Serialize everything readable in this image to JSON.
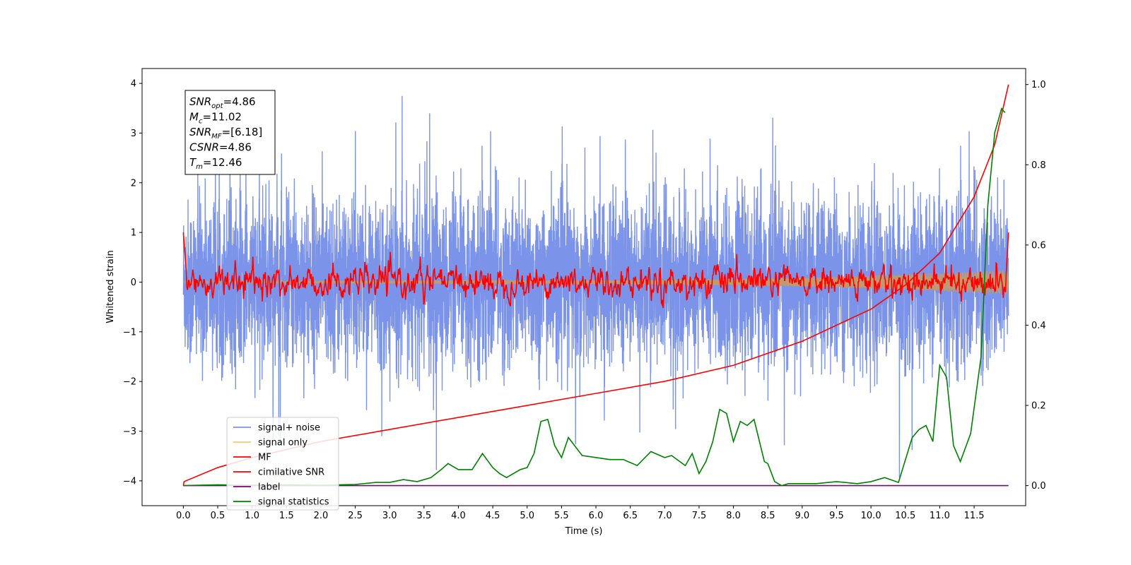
{
  "chart_data": {
    "type": "line",
    "xlabel": "Time (s)",
    "ylabel": "Whitened strain",
    "xlim": [
      -0.6,
      12.25
    ],
    "ylim_left": [
      -4.5,
      4.3
    ],
    "ylim_right": [
      -0.05,
      1.04
    ],
    "x_ticks": [
      0.0,
      0.5,
      1.0,
      1.5,
      2.0,
      2.5,
      3.0,
      3.5,
      4.0,
      4.5,
      5.0,
      5.5,
      6.0,
      6.5,
      7.0,
      7.5,
      8.0,
      8.5,
      9.0,
      9.5,
      10.0,
      10.5,
      11.0,
      11.5
    ],
    "x_tick_labels": [
      "0.0",
      "0.5",
      "1.0",
      "1.5",
      "2.0",
      "2.5",
      "3.0",
      "3.5",
      "4.0",
      "4.5",
      "5.0",
      "5.5",
      "6.0",
      "6.5",
      "7.0",
      "7.5",
      "8.0",
      "8.5",
      "9.0",
      "9.5",
      "10.0",
      "10.5",
      "11.0",
      "11.5"
    ],
    "y_ticks_left": [
      -4,
      -3,
      -2,
      -1,
      0,
      1,
      2,
      3,
      4
    ],
    "y_tick_labels_left": [
      "−4",
      "−3",
      "−2",
      "−1",
      "0",
      "1",
      "2",
      "3",
      "4"
    ],
    "y_ticks_right": [
      0.0,
      0.2,
      0.4,
      0.6,
      0.8,
      1.0
    ],
    "y_tick_labels_right": [
      "0.0",
      "0.2",
      "0.4",
      "0.6",
      "0.8",
      "1.0"
    ],
    "annotation": {
      "lines": [
        {
          "base": "SNR",
          "sub": "opt",
          "rest": "=4.86"
        },
        {
          "base": "M",
          "sub": "c",
          "rest": "=11.02"
        },
        {
          "base": "SNR",
          "sub": "MF",
          "rest": "=[6.18]"
        },
        {
          "base": "CSNR",
          "sub": "",
          "rest": "=4.86"
        },
        {
          "base": "T",
          "sub": "m",
          "rest": "=12.46"
        }
      ]
    },
    "legend_position": "lower-left",
    "series": [
      {
        "name": "signal+ noise",
        "color": "#7b93e8",
        "axis": "left",
        "kind": "noise",
        "x_range": [
          0.0,
          12.0
        ],
        "amplitude_typical": 1.7,
        "max": 3.9,
        "min": -4.15
      },
      {
        "name": "signal only",
        "color": "#f5c87a",
        "axis": "left",
        "kind": "chirp",
        "x_range": [
          0.0,
          12.0
        ],
        "envelope_start": 0.02,
        "envelope_end": 0.25
      },
      {
        "name": "MF",
        "color": "#ff0000",
        "axis": "left",
        "kind": "mf",
        "x_range": [
          0.0,
          12.0
        ],
        "start": 1.0,
        "end": 1.0,
        "amplitude_typical": 0.15
      },
      {
        "name": "cimilative SNR",
        "color": "#ff0000",
        "axis": "right",
        "x": [
          0.0,
          0.01,
          0.5,
          1.0,
          2.0,
          3.0,
          4.0,
          5.0,
          6.0,
          7.0,
          8.0,
          9.0,
          10.0,
          10.5,
          11.0,
          11.5,
          11.8,
          12.0
        ],
        "y": [
          0.0,
          0.01,
          0.045,
          0.07,
          0.11,
          0.14,
          0.17,
          0.2,
          0.23,
          0.26,
          0.3,
          0.36,
          0.44,
          0.5,
          0.58,
          0.72,
          0.85,
          1.0
        ]
      },
      {
        "name": "label",
        "color": "#800080",
        "axis": "right",
        "x": [
          0.0,
          12.0
        ],
        "y": [
          0.0,
          0.0
        ]
      },
      {
        "name": "signal statistics",
        "color": "#008000",
        "axis": "right",
        "x": [
          0.0,
          0.5,
          1.0,
          1.5,
          2.0,
          2.5,
          2.8,
          3.0,
          3.2,
          3.4,
          3.6,
          3.75,
          3.85,
          4.0,
          4.2,
          4.35,
          4.5,
          4.6,
          4.7,
          4.9,
          5.0,
          5.1,
          5.2,
          5.3,
          5.4,
          5.5,
          5.6,
          5.8,
          6.0,
          6.2,
          6.4,
          6.6,
          6.8,
          7.0,
          7.1,
          7.3,
          7.4,
          7.5,
          7.6,
          7.7,
          7.8,
          7.9,
          8.0,
          8.1,
          8.2,
          8.3,
          8.45,
          8.5,
          8.6,
          8.7,
          8.8,
          9.0,
          9.2,
          9.5,
          9.8,
          10.0,
          10.2,
          10.4,
          10.6,
          10.7,
          10.8,
          10.9,
          11.0,
          11.1,
          11.2,
          11.3,
          11.45,
          11.6,
          11.7,
          11.8,
          11.9,
          11.95
        ],
        "y": [
          0.0,
          0.002,
          0.001,
          0.002,
          0.001,
          0.003,
          0.008,
          0.008,
          0.015,
          0.01,
          0.02,
          0.04,
          0.055,
          0.04,
          0.04,
          0.08,
          0.045,
          0.03,
          0.02,
          0.04,
          0.045,
          0.08,
          0.16,
          0.165,
          0.1,
          0.07,
          0.12,
          0.075,
          0.07,
          0.065,
          0.065,
          0.05,
          0.085,
          0.07,
          0.075,
          0.05,
          0.08,
          0.03,
          0.06,
          0.11,
          0.19,
          0.18,
          0.11,
          0.16,
          0.15,
          0.165,
          0.06,
          0.055,
          0.01,
          0.0,
          0.005,
          0.005,
          0.005,
          0.01,
          0.005,
          0.01,
          0.02,
          0.008,
          0.12,
          0.14,
          0.15,
          0.11,
          0.3,
          0.27,
          0.1,
          0.06,
          0.13,
          0.32,
          0.7,
          0.88,
          0.94,
          0.93
        ]
      }
    ]
  }
}
